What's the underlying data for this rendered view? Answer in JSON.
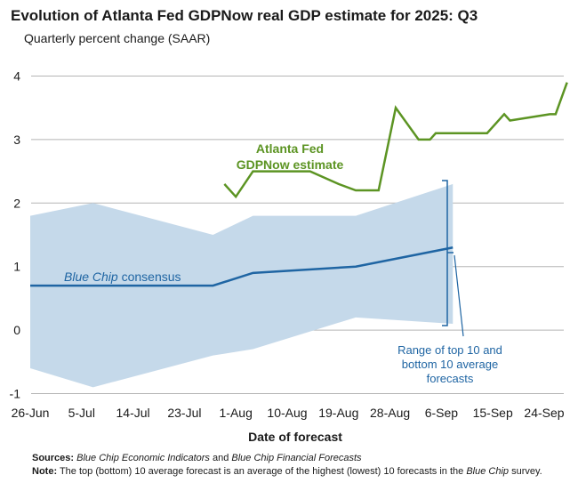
{
  "chart_data": {
    "type": "line",
    "title": "Evolution of Atlanta Fed GDPNow real GDP estimate for 2025: Q3",
    "subtitle": "Quarterly percent change (SAAR)",
    "xlabel": "Date of forecast",
    "ylim": [
      -1,
      4
    ],
    "y_ticks": [
      "4",
      "3",
      "2",
      "1",
      "0",
      "-1"
    ],
    "x_tick_labels": [
      "26-Jun",
      "5-Jul",
      "14-Jul",
      "23-Jul",
      "1-Aug",
      "10-Aug",
      "19-Aug",
      "28-Aug",
      "6-Sep",
      "15-Sep",
      "24-Sep"
    ],
    "x_tick_dates": [
      "2025-06-26",
      "2025-07-05",
      "2025-07-14",
      "2025-07-23",
      "2025-08-01",
      "2025-08-10",
      "2025-08-19",
      "2025-08-28",
      "2025-09-06",
      "2025-09-15",
      "2025-09-24"
    ],
    "grid": "horizontal",
    "colors": {
      "gdpnow": "#5c9423",
      "consensus": "#1f65a3",
      "range_fill": "#c5d9ea",
      "annotation": "#1f65a3"
    },
    "series": [
      {
        "name": "Atlanta Fed GDPNow estimate",
        "x": [
          "2025-07-30",
          "2025-08-01",
          "2025-08-04",
          "2025-08-14",
          "2025-08-19",
          "2025-08-22",
          "2025-08-26",
          "2025-08-29",
          "2025-09-02",
          "2025-09-04",
          "2025-09-05",
          "2025-09-09",
          "2025-09-14",
          "2025-09-17",
          "2025-09-18",
          "2025-09-25",
          "2025-09-26",
          "2025-09-28"
        ],
        "values": [
          2.3,
          2.1,
          2.5,
          2.5,
          2.3,
          2.2,
          2.2,
          3.5,
          3.0,
          3.0,
          3.1,
          3.1,
          3.1,
          3.4,
          3.3,
          3.4,
          3.4,
          3.9
        ]
      },
      {
        "name": "Blue Chip consensus",
        "x": [
          "2025-06-26",
          "2025-07-28",
          "2025-08-04",
          "2025-08-22",
          "2025-09-08"
        ],
        "values": [
          0.7,
          0.7,
          0.9,
          1.0,
          1.3
        ]
      }
    ],
    "range": {
      "name": "Range of top 10 and bottom 10 average forecasts",
      "x": [
        "2025-06-26",
        "2025-07-07",
        "2025-07-28",
        "2025-08-04",
        "2025-08-22",
        "2025-09-08"
      ],
      "upper": [
        1.8,
        2.0,
        1.5,
        1.8,
        1.8,
        2.3
      ],
      "lower": [
        -0.6,
        -0.9,
        -0.4,
        -0.3,
        0.2,
        0.1
      ]
    },
    "annotations": {
      "gdpnow_label_line1": "Atlanta Fed",
      "gdpnow_label_line2": "GDPNow estimate",
      "consensus_label_italic": "Blue Chip",
      "consensus_label_rest": " consensus",
      "range_label_line1": "Range of top 10 and",
      "range_label_line2": "bottom 10 average",
      "range_label_line3": "forecasts"
    }
  },
  "notes": {
    "sources_label": "Sources:",
    "sources_italic1": "Blue Chip Economic Indicators",
    "sources_and": " and ",
    "sources_italic2": "Blue Chip Financial Forecasts",
    "note_label": "Note:",
    "note_text_before": " The top (bottom) 10 average forecast is an average of the highest (lowest) 10 forecasts in the ",
    "note_italic": "Blue Chip",
    "note_text_after": " survey."
  }
}
